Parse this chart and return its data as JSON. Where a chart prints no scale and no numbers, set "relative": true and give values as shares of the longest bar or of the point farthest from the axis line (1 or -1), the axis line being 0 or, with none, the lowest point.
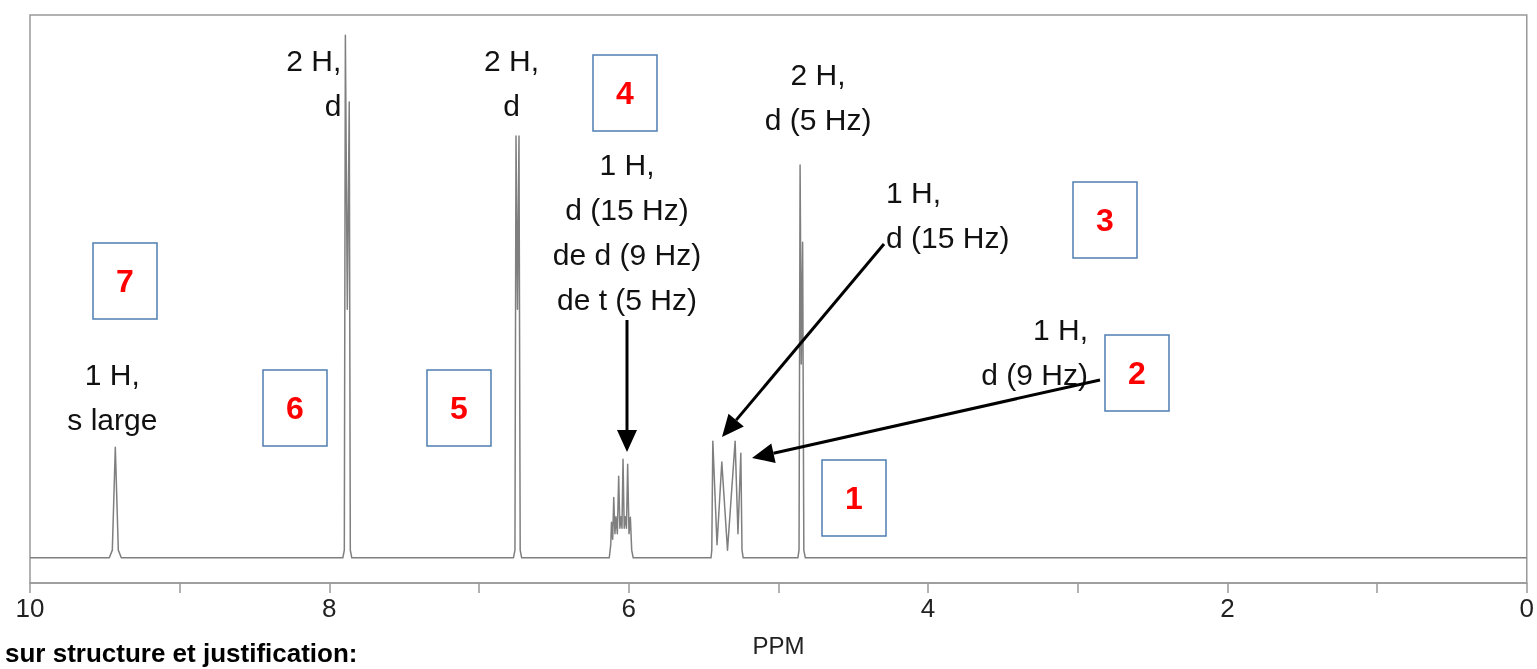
{
  "chart_data": {
    "type": "line",
    "relative": true,
    "xlabel": "PPM",
    "xlim": [
      10,
      0
    ],
    "xticks": [
      10,
      {
        "value": 9,
        "label": null
      },
      8,
      {
        "value": 7,
        "label": null
      },
      6,
      {
        "value": 5,
        "label": null
      },
      4,
      {
        "value": 3,
        "label": null
      },
      2,
      {
        "value": 1,
        "label": null
      },
      0
    ],
    "series": [
      {
        "color": "#7f7f7f",
        "x": [
          10,
          9.47,
          9.45,
          9.43,
          9.41,
          9.39,
          7.91,
          7.9,
          7.893,
          7.88,
          7.867,
          7.86,
          7.85,
          6.77,
          6.76,
          6.753,
          6.743,
          6.733,
          6.725,
          6.715,
          6.13,
          6.12,
          6.115,
          6.107,
          6.1,
          6.092,
          6.085,
          6.076,
          6.067,
          6.059,
          6.051,
          6.045,
          6.038,
          6.03,
          6.022,
          6.015,
          6.007,
          5.998,
          5.989,
          5.98,
          5.97,
          5.45,
          5.445,
          5.438,
          5.41,
          5.378,
          5.34,
          5.289,
          5.27,
          5.251,
          5.243,
          5.235,
          4.87,
          4.862,
          4.855,
          4.847,
          4.838,
          4.83,
          4.82,
          0
        ],
        "values": [
          0.046,
          0.046,
          0.06,
          0.248,
          0.06,
          0.046,
          0.046,
          0.06,
          1.0,
          0.5,
          0.878,
          0.06,
          0.046,
          0.046,
          0.06,
          0.816,
          0.5,
          0.816,
          0.06,
          0.046,
          0.046,
          0.07,
          0.111,
          0.08,
          0.156,
          0.09,
          0.121,
          0.09,
          0.195,
          0.1,
          0.121,
          0.1,
          0.226,
          0.1,
          0.121,
          0.1,
          0.217,
          0.09,
          0.12,
          0.06,
          0.046,
          0.046,
          0.06,
          0.259,
          0.07,
          0.221,
          0.06,
          0.259,
          0.09,
          0.237,
          0.06,
          0.046,
          0.046,
          0.06,
          0.763,
          0.4,
          0.622,
          0.06,
          0.046,
          0.046
        ]
      }
    ],
    "annotations": [
      {
        "text": "1 H,\ns large",
        "x": 9.43,
        "y": 0.248
      },
      {
        "text": "2 H,\nd",
        "x": 7.893,
        "y": 1.0
      },
      {
        "text": "2 H,\nd",
        "x": 6.743,
        "y": 0.816
      },
      "1 H,\nd (15 Hz)\nde d (9 Hz)\nde t (5 Hz)",
      {
        "text": "2 H,\nd (5 Hz)",
        "x": 4.855,
        "y": 0.763
      },
      "1 H,\nd (15 Hz)",
      "1 H,\nd (9 Hz)",
      "1",
      "2",
      "3",
      "4",
      "5",
      "6",
      "7",
      "sur structure et justification:"
    ]
  }
}
